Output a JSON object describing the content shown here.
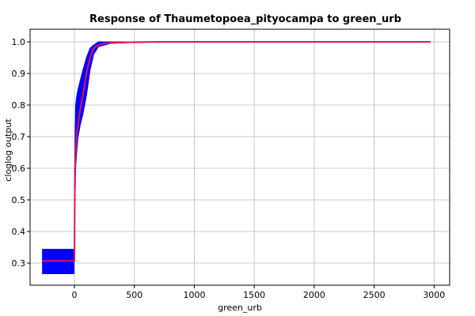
{
  "chart_data": {
    "type": "line",
    "title": "Response of Thaumetopoea_pityocampa to green_urb",
    "xlabel": "green_urb",
    "ylabel": "cloglog output",
    "xlim": [
      -370,
      3130
    ],
    "ylim": [
      0.23,
      1.04
    ],
    "xticks": [
      0,
      500,
      1000,
      1500,
      2000,
      2500,
      3000
    ],
    "yticks": [
      0.3,
      0.4,
      0.5,
      0.6,
      0.7,
      0.8,
      0.9,
      1.0
    ],
    "xtick_labels": [
      "0",
      "500",
      "1000",
      "1500",
      "2000",
      "2500",
      "3000"
    ],
    "ytick_labels": [
      "0.3",
      "0.4",
      "0.5",
      "0.6",
      "0.7",
      "0.8",
      "0.9",
      "1.0"
    ],
    "grid": true,
    "colors": {
      "mean": "#e0115f",
      "band": "#0000ff",
      "grid": "#c8c8c8"
    },
    "band": {
      "x": [
        0,
        5,
        10,
        20,
        30,
        50,
        70,
        100,
        130,
        160,
        200,
        250,
        300,
        400,
        500,
        700,
        1000,
        2970
      ],
      "upper": [
        0.48,
        0.68,
        0.8,
        0.83,
        0.85,
        0.88,
        0.91,
        0.95,
        0.98,
        0.99,
        1.0,
        1.0,
        1.0,
        1.0,
        1.0,
        1.0,
        1.0,
        1.0
      ],
      "lower": [
        0.4,
        0.5,
        0.6,
        0.66,
        0.7,
        0.74,
        0.77,
        0.83,
        0.91,
        0.96,
        0.985,
        0.99,
        0.995,
        0.997,
        0.998,
        0.999,
        1.0,
        1.0
      ]
    },
    "left_block": {
      "x": [
        -270,
        0
      ],
      "lower": 0.265,
      "upper": 0.345
    },
    "series": [
      {
        "x": [
          -270,
          0,
          2,
          5,
          10,
          20,
          30,
          50,
          70,
          100,
          130,
          160,
          200,
          250,
          300,
          400,
          500,
          700,
          1000,
          2970
        ],
        "y": [
          0.307,
          0.307,
          0.45,
          0.6,
          0.66,
          0.71,
          0.74,
          0.79,
          0.83,
          0.9,
          0.95,
          0.98,
          0.99,
          0.995,
          0.997,
          0.998,
          0.999,
          1.0,
          1.0,
          1.0
        ]
      }
    ]
  }
}
